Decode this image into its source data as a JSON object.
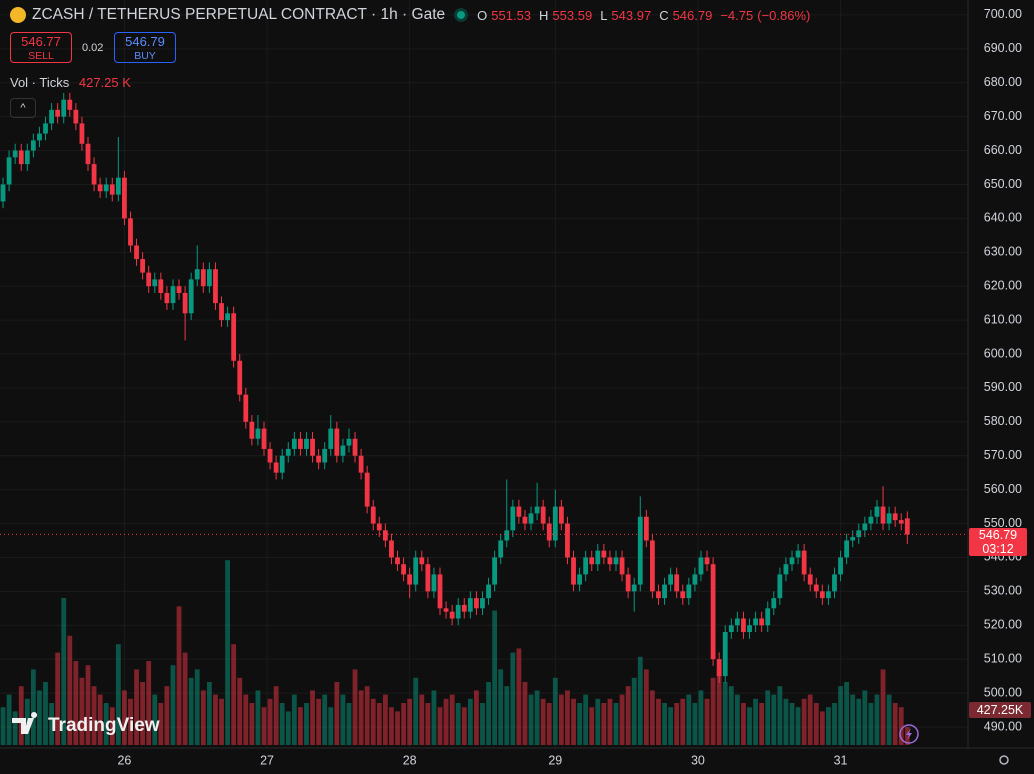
{
  "chart_data": {
    "type": "candlestick",
    "title": "ZCASH / TETHERUS PERPETUAL CONTRACT · 1h · Gate",
    "legend_labels": [
      "O",
      "H",
      "L",
      "C"
    ],
    "change": "−4.75",
    "change_pct": "(−0.86%)",
    "sell": {
      "price": 546.77,
      "label": "SELL"
    },
    "spread": 0.02,
    "buy": {
      "price": 546.79,
      "label": "BUY"
    },
    "volume_title": "Vol · Ticks",
    "volume_legend": "427.25 K",
    "volume_axis_label": "427.25K",
    "countdown": "03:12",
    "watermark": "TradingView",
    "up_color": "#089981",
    "down_color": "#f23645",
    "grid": true,
    "ylim": [
      483.8,
      704.4
    ],
    "yticks": [
      {
        "value": 490,
        "label": "490.00"
      },
      {
        "value": 500,
        "label": "500.00"
      },
      {
        "value": 510,
        "label": "510.00"
      },
      {
        "value": 520,
        "label": "520.00"
      },
      {
        "value": 530,
        "label": "530.00"
      },
      {
        "value": 540,
        "label": "540.00"
      },
      {
        "value": 550,
        "label": "550.00"
      },
      {
        "value": 560,
        "label": "560.00"
      },
      {
        "value": 570,
        "label": "570.00"
      },
      {
        "value": 580,
        "label": "580.00"
      },
      {
        "value": 590,
        "label": "590.00"
      },
      {
        "value": 600,
        "label": "600.00"
      },
      {
        "value": 610,
        "label": "610.00"
      },
      {
        "value": 620,
        "label": "620.00"
      },
      {
        "value": 630,
        "label": "630.00"
      },
      {
        "value": 640,
        "label": "640.00"
      },
      {
        "value": 650,
        "label": "650.00"
      },
      {
        "value": 660,
        "label": "660.00"
      },
      {
        "value": 670,
        "label": "670.00"
      },
      {
        "value": 680,
        "label": "680.00"
      },
      {
        "value": 690,
        "label": "690.00"
      },
      {
        "value": 700,
        "label": "700.00"
      }
    ],
    "xlim": [
      -0.5,
      159
    ],
    "xticks": [
      {
        "value": 20,
        "label": "26"
      },
      {
        "value": 43.5,
        "label": "27"
      },
      {
        "value": 67,
        "label": "28"
      },
      {
        "value": 91,
        "label": "29"
      },
      {
        "value": 114.5,
        "label": "30"
      },
      {
        "value": 138,
        "label": "31"
      }
    ],
    "candles": [
      [
        645,
        652,
        643,
        650
      ],
      [
        650,
        660,
        648,
        658
      ],
      [
        658,
        662,
        656,
        660
      ],
      [
        660,
        662,
        654,
        656
      ],
      [
        656,
        662,
        654,
        660
      ],
      [
        660,
        665,
        658,
        663
      ],
      [
        663,
        667,
        661,
        665
      ],
      [
        665,
        670,
        663,
        668
      ],
      [
        668,
        674,
        666,
        672
      ],
      [
        672,
        674,
        668,
        670
      ],
      [
        670,
        677,
        668,
        675
      ],
      [
        675,
        677,
        670,
        672
      ],
      [
        672,
        674,
        666,
        668
      ],
      [
        668,
        670,
        660,
        662
      ],
      [
        662,
        664,
        654,
        656
      ],
      [
        656,
        658,
        648,
        650
      ],
      [
        650,
        652,
        646,
        648
      ],
      [
        648,
        652,
        646,
        650
      ],
      [
        650,
        652,
        645,
        647
      ],
      [
        647,
        664,
        645,
        652
      ],
      [
        652,
        654,
        638,
        640
      ],
      [
        640,
        642,
        630,
        632
      ],
      [
        632,
        634,
        626,
        628
      ],
      [
        628,
        630,
        622,
        624
      ],
      [
        624,
        626,
        618,
        620
      ],
      [
        620,
        624,
        618,
        622
      ],
      [
        622,
        624,
        616,
        618
      ],
      [
        618,
        620,
        613,
        615
      ],
      [
        615,
        622,
        613,
        620
      ],
      [
        620,
        622,
        616,
        618
      ],
      [
        618,
        620,
        604,
        612
      ],
      [
        612,
        624,
        610,
        622
      ],
      [
        622,
        632,
        620,
        625
      ],
      [
        625,
        627,
        618,
        620
      ],
      [
        620,
        627,
        618,
        625
      ],
      [
        625,
        627,
        613,
        615
      ],
      [
        615,
        617,
        608,
        610
      ],
      [
        610,
        614,
        608,
        612
      ],
      [
        612,
        614,
        596,
        598
      ],
      [
        598,
        600,
        586,
        588
      ],
      [
        588,
        590,
        578,
        580
      ],
      [
        580,
        582,
        573,
        575
      ],
      [
        575,
        582,
        573,
        578
      ],
      [
        578,
        580,
        570,
        572
      ],
      [
        572,
        574,
        566,
        568
      ],
      [
        568,
        570,
        563,
        565
      ],
      [
        565,
        572,
        563,
        570
      ],
      [
        570,
        574,
        568,
        572
      ],
      [
        572,
        577,
        570,
        575
      ],
      [
        575,
        577,
        570,
        572
      ],
      [
        572,
        577,
        570,
        575
      ],
      [
        575,
        577,
        568,
        570
      ],
      [
        570,
        572,
        566,
        568
      ],
      [
        568,
        574,
        566,
        572
      ],
      [
        572,
        582,
        570,
        578
      ],
      [
        578,
        580,
        568,
        570
      ],
      [
        570,
        575,
        568,
        573
      ],
      [
        573,
        578,
        571,
        575
      ],
      [
        575,
        577,
        568,
        570
      ],
      [
        570,
        572,
        563,
        565
      ],
      [
        565,
        567,
        553,
        555
      ],
      [
        555,
        557,
        548,
        550
      ],
      [
        550,
        552,
        546,
        548
      ],
      [
        548,
        550,
        543,
        545
      ],
      [
        545,
        547,
        538,
        540
      ],
      [
        540,
        542,
        536,
        538
      ],
      [
        538,
        540,
        533,
        535
      ],
      [
        535,
        537,
        528,
        532
      ],
      [
        532,
        542,
        530,
        540
      ],
      [
        540,
        542,
        536,
        538
      ],
      [
        538,
        540,
        528,
        530
      ],
      [
        530,
        537,
        528,
        535
      ],
      [
        535,
        537,
        523,
        525
      ],
      [
        525,
        527,
        522,
        524
      ],
      [
        524,
        526,
        520,
        522
      ],
      [
        522,
        528,
        520,
        526
      ],
      [
        526,
        528,
        522,
        524
      ],
      [
        524,
        530,
        522,
        528
      ],
      [
        528,
        530,
        523,
        525
      ],
      [
        525,
        530,
        523,
        528
      ],
      [
        528,
        534,
        526,
        532
      ],
      [
        532,
        542,
        530,
        540
      ],
      [
        540,
        547,
        538,
        545
      ],
      [
        545,
        563,
        543,
        548
      ],
      [
        548,
        557,
        546,
        555
      ],
      [
        555,
        557,
        550,
        552
      ],
      [
        552,
        554,
        548,
        550
      ],
      [
        550,
        555,
        548,
        553
      ],
      [
        553,
        562,
        551,
        555
      ],
      [
        555,
        557,
        548,
        550
      ],
      [
        550,
        552,
        543,
        545
      ],
      [
        545,
        560,
        543,
        555
      ],
      [
        555,
        557,
        548,
        550
      ],
      [
        550,
        552,
        538,
        540
      ],
      [
        540,
        542,
        530,
        532
      ],
      [
        532,
        537,
        530,
        535
      ],
      [
        535,
        542,
        533,
        540
      ],
      [
        540,
        542,
        536,
        538
      ],
      [
        538,
        544,
        536,
        542
      ],
      [
        542,
        544,
        538,
        540
      ],
      [
        540,
        542,
        536,
        538
      ],
      [
        538,
        542,
        536,
        540
      ],
      [
        540,
        542,
        533,
        535
      ],
      [
        535,
        537,
        528,
        530
      ],
      [
        530,
        534,
        524,
        532
      ],
      [
        532,
        558,
        530,
        552
      ],
      [
        552,
        554,
        543,
        545
      ],
      [
        545,
        547,
        528,
        530
      ],
      [
        530,
        532,
        526,
        528
      ],
      [
        528,
        534,
        526,
        532
      ],
      [
        532,
        537,
        530,
        535
      ],
      [
        535,
        537,
        528,
        530
      ],
      [
        530,
        532,
        526,
        528
      ],
      [
        528,
        534,
        526,
        532
      ],
      [
        532,
        537,
        530,
        535
      ],
      [
        535,
        542,
        533,
        540
      ],
      [
        540,
        542,
        536,
        538
      ],
      [
        538,
        540,
        508,
        510
      ],
      [
        510,
        512,
        503,
        505
      ],
      [
        505,
        520,
        503,
        518
      ],
      [
        518,
        522,
        516,
        520
      ],
      [
        520,
        524,
        518,
        522
      ],
      [
        522,
        524,
        516,
        518
      ],
      [
        518,
        522,
        516,
        520
      ],
      [
        520,
        524,
        518,
        522
      ],
      [
        522,
        524,
        518,
        520
      ],
      [
        520,
        527,
        518,
        525
      ],
      [
        525,
        530,
        523,
        528
      ],
      [
        528,
        537,
        526,
        535
      ],
      [
        535,
        540,
        533,
        538
      ],
      [
        538,
        542,
        536,
        540
      ],
      [
        540,
        544,
        538,
        542
      ],
      [
        542,
        544,
        533,
        535
      ],
      [
        535,
        537,
        530,
        532
      ],
      [
        532,
        534,
        528,
        530
      ],
      [
        530,
        532,
        526,
        528
      ],
      [
        528,
        532,
        526,
        530
      ],
      [
        530,
        537,
        528,
        535
      ],
      [
        535,
        542,
        533,
        540
      ],
      [
        540,
        547,
        538,
        545
      ],
      [
        545,
        548,
        543,
        546
      ],
      [
        546,
        550,
        544,
        548
      ],
      [
        548,
        552,
        546,
        550
      ],
      [
        550,
        554,
        548,
        552
      ],
      [
        552,
        557,
        550,
        555
      ],
      [
        555,
        561,
        548,
        550
      ],
      [
        550,
        555,
        548,
        553
      ],
      [
        553,
        555,
        549,
        551
      ],
      [
        551,
        553,
        548,
        550
      ],
      [
        551.53,
        553.59,
        543.97,
        546.79
      ]
    ],
    "volume": [
      900,
      1200,
      800,
      1400,
      1100,
      1800,
      1300,
      1500,
      1000,
      2200,
      3500,
      2600,
      2000,
      1600,
      1900,
      1400,
      1200,
      1000,
      900,
      2400,
      1300,
      1100,
      1800,
      1500,
      2000,
      1200,
      1000,
      1400,
      1900,
      3300,
      2200,
      1600,
      1800,
      1300,
      1500,
      1200,
      1100,
      4400,
      2400,
      1600,
      1200,
      1000,
      1300,
      900,
      1100,
      1400,
      1000,
      800,
      1200,
      900,
      1000,
      1300,
      1100,
      1200,
      900,
      1500,
      1200,
      1000,
      1800,
      1300,
      1400,
      1100,
      1000,
      1200,
      900,
      800,
      1000,
      1100,
      1600,
      1200,
      1000,
      1300,
      900,
      1100,
      1200,
      1000,
      900,
      1100,
      1300,
      1000,
      1500,
      3200,
      1800,
      1400,
      2200,
      2300,
      1500,
      1200,
      1300,
      1100,
      1000,
      1600,
      1200,
      1300,
      1100,
      1000,
      1200,
      900,
      1100,
      1000,
      1100,
      1000,
      1200,
      1400,
      1600,
      2100,
      1800,
      1300,
      1100,
      1000,
      900,
      1000,
      1100,
      1200,
      1000,
      1300,
      1100,
      1600,
      1800,
      1500,
      1400,
      1200,
      1000,
      900,
      1100,
      1000,
      1300,
      1200,
      1400,
      1100,
      1000,
      900,
      1100,
      1200,
      1000,
      800,
      900,
      1000,
      1400,
      1500,
      1200,
      1100,
      1300,
      1000,
      1200,
      1800,
      1200,
      1000,
      900,
      427.25
    ]
  }
}
